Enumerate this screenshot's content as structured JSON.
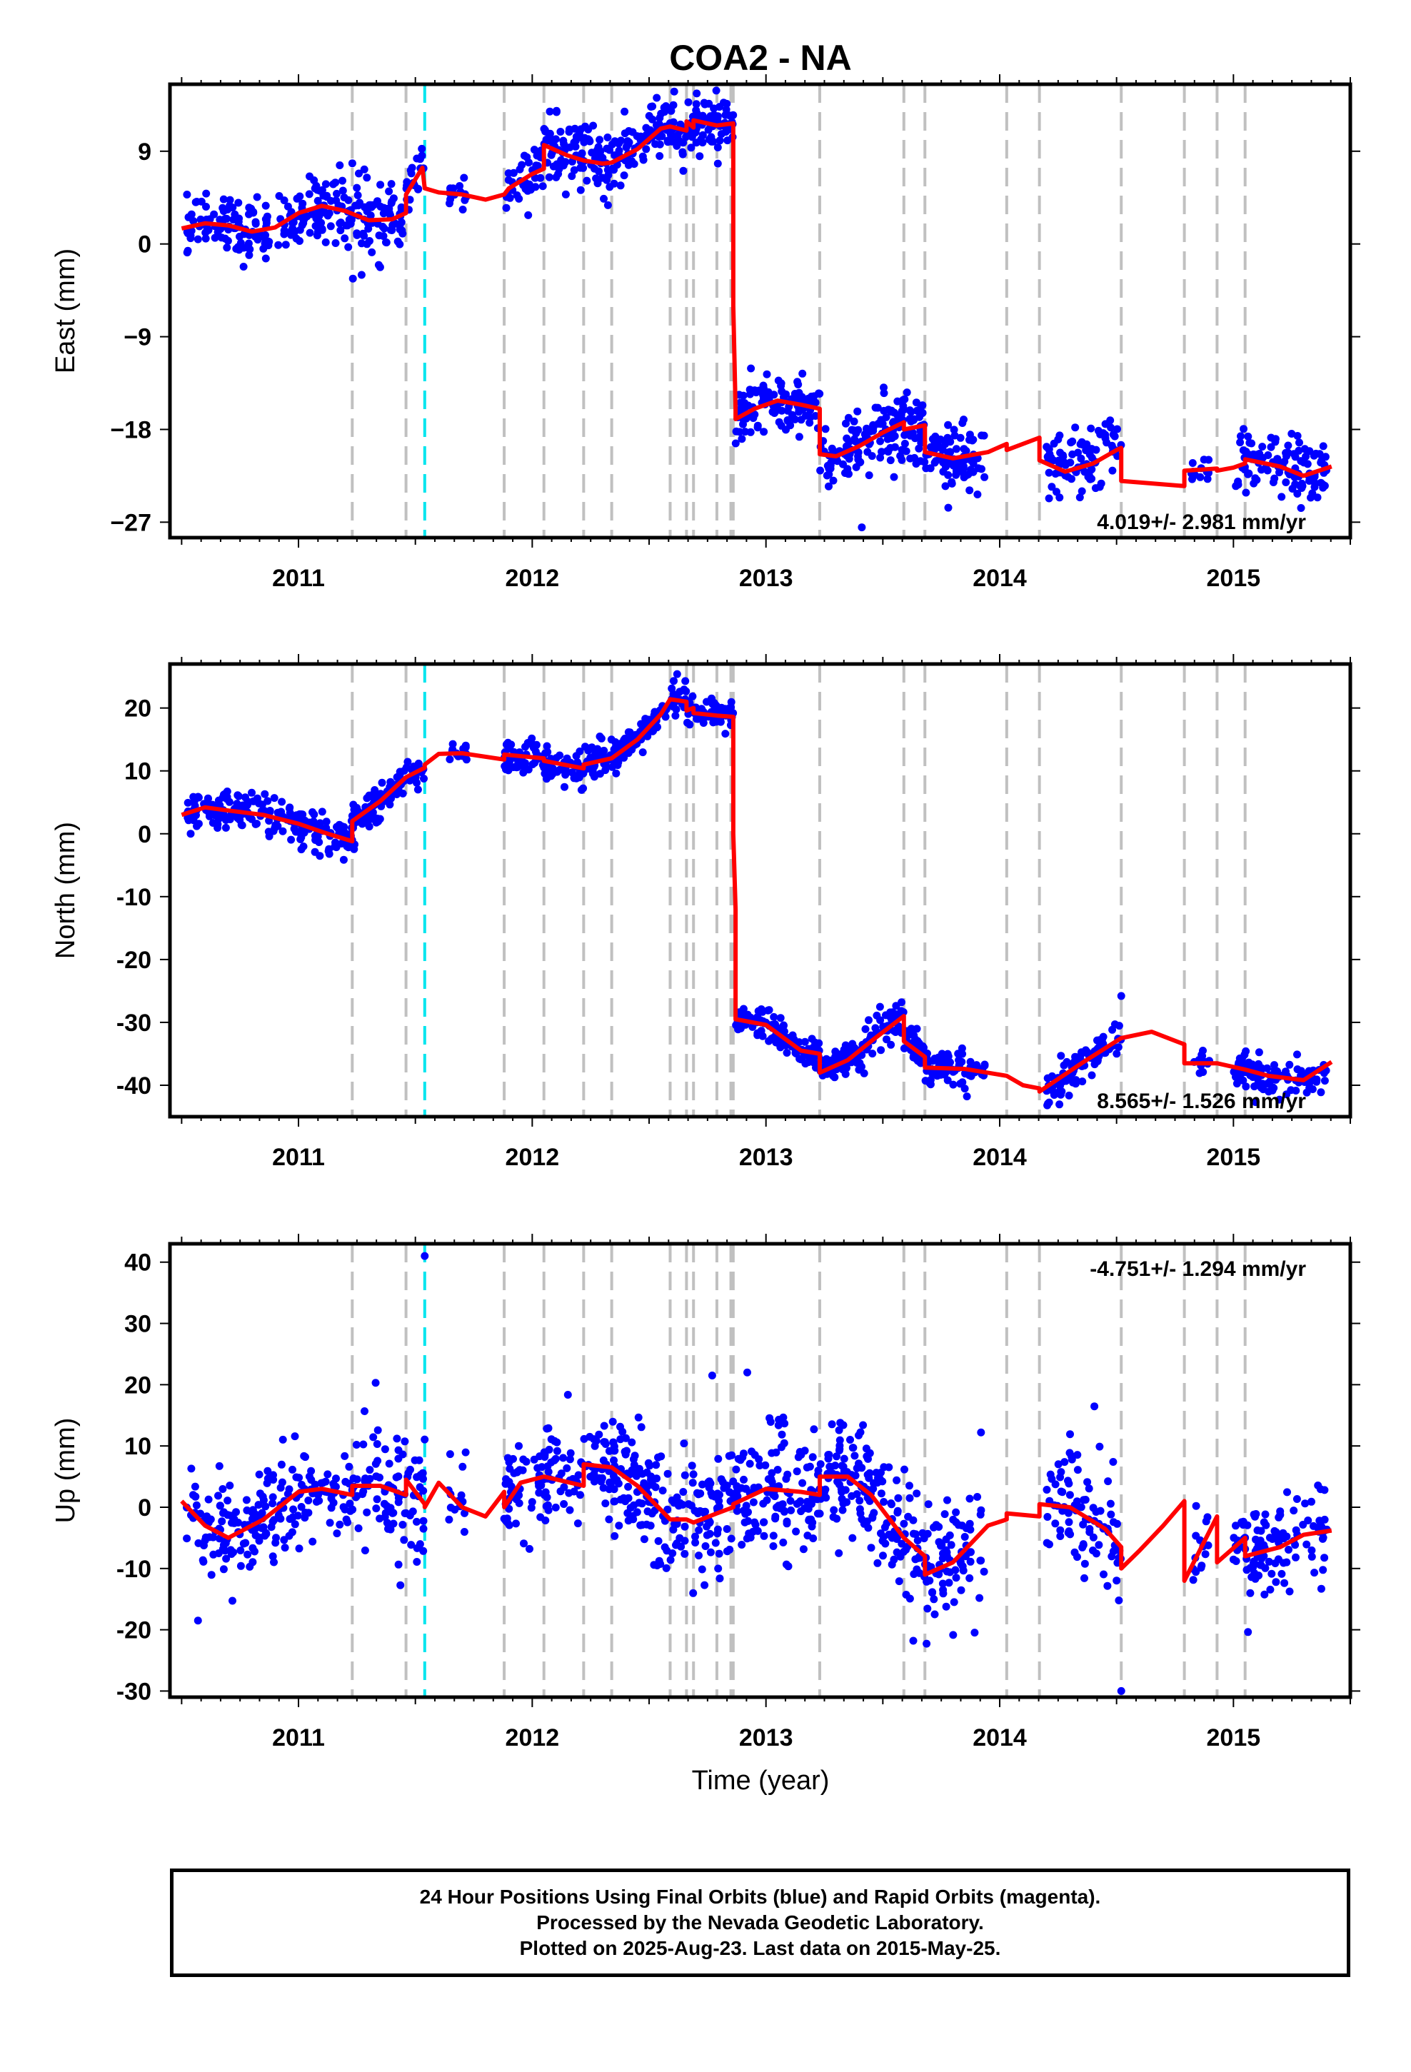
{
  "title": "COA2 - NA",
  "xlabel": "Time (year)",
  "caption": [
    "24 Hour Positions Using Final Orbits (blue) and Rapid Orbits (magenta).",
    "Processed by the Nevada Geodetic Laboratory.",
    "Plotted on 2025-Aug-23. Last data on 2015-May-25."
  ],
  "colors": {
    "data": "#0000ff",
    "model": "#ff0000",
    "event_line": "#c0c0c0",
    "highlight_event_line": "#00e5ee"
  },
  "chart_data": [
    {
      "type": "scatter",
      "panel": "east",
      "ylabel": "East (mm)",
      "xlim": [
        2010.45,
        2015.5
      ],
      "ylim": [
        -28.5,
        15.5
      ],
      "x_ticks": [
        2011,
        2012,
        2013,
        2014,
        2015
      ],
      "y_ticks": [
        -27,
        -18,
        -9,
        0,
        9
      ],
      "rate_label": "4.019+/- 2.981 mm/yr",
      "rate_position": "bottom-right",
      "event_lines": [
        2011.23,
        2011.46,
        2011.88,
        2012.05,
        2012.22,
        2012.34,
        2012.59,
        2012.66,
        2012.69,
        2012.79,
        2012.85,
        2012.86,
        2013.23,
        2013.59,
        2013.68,
        2014.03,
        2014.17,
        2014.52,
        2014.79,
        2014.93,
        2015.05
      ],
      "highlight_event_lines": [
        2011.54
      ],
      "model": [
        [
          2010.5,
          1.5
        ],
        [
          2010.6,
          2.0
        ],
        [
          2010.7,
          1.8
        ],
        [
          2010.8,
          1.2
        ],
        [
          2010.9,
          1.6
        ],
        [
          2011.0,
          3.0
        ],
        [
          2011.1,
          3.7
        ],
        [
          2011.2,
          3.2
        ],
        [
          2011.3,
          2.3
        ],
        [
          2011.4,
          2.4
        ],
        [
          2011.46,
          3.0
        ],
        [
          2011.46,
          4.8
        ],
        [
          2011.53,
          7.4
        ],
        [
          2011.54,
          5.4
        ],
        [
          2011.6,
          5.0
        ],
        [
          2011.7,
          4.8
        ],
        [
          2011.8,
          4.3
        ],
        [
          2011.88,
          4.8
        ],
        [
          2011.9,
          5.4
        ],
        [
          2012.0,
          6.8
        ],
        [
          2012.05,
          7.3
        ],
        [
          2012.05,
          9.6
        ],
        [
          2012.15,
          8.6
        ],
        [
          2012.22,
          8.1
        ],
        [
          2012.3,
          7.8
        ],
        [
          2012.34,
          7.9
        ],
        [
          2012.45,
          9.2
        ],
        [
          2012.55,
          11.2
        ],
        [
          2012.59,
          11.4
        ],
        [
          2012.66,
          11.0
        ],
        [
          2012.66,
          11.9
        ],
        [
          2012.69,
          11.3
        ],
        [
          2012.69,
          12.0
        ],
        [
          2012.79,
          11.5
        ],
        [
          2012.86,
          11.7
        ],
        [
          2012.86,
          -6.0
        ],
        [
          2012.87,
          -16.0
        ],
        [
          2012.87,
          -17.0
        ],
        [
          2012.95,
          -16.0
        ],
        [
          2013.05,
          -15.2
        ],
        [
          2013.15,
          -15.6
        ],
        [
          2013.23,
          -16.0
        ],
        [
          2013.23,
          -20.4
        ],
        [
          2013.3,
          -20.6
        ],
        [
          2013.4,
          -19.6
        ],
        [
          2013.5,
          -18.3
        ],
        [
          2013.59,
          -17.3
        ],
        [
          2013.59,
          -18.0
        ],
        [
          2013.68,
          -17.6
        ],
        [
          2013.68,
          -20.2
        ],
        [
          2013.8,
          -20.8
        ],
        [
          2013.95,
          -20.2
        ],
        [
          2014.03,
          -19.4
        ],
        [
          2014.03,
          -20.0
        ],
        [
          2014.17,
          -18.8
        ],
        [
          2014.17,
          -21.0
        ],
        [
          2014.28,
          -22.1
        ],
        [
          2014.4,
          -21.3
        ],
        [
          2014.5,
          -20.0
        ],
        [
          2014.52,
          -19.8
        ],
        [
          2014.52,
          -23.0
        ],
        [
          2014.79,
          -23.5
        ],
        [
          2014.79,
          -22.0
        ],
        [
          2014.93,
          -21.8
        ],
        [
          2014.93,
          -22.0
        ],
        [
          2015.0,
          -21.7
        ],
        [
          2015.05,
          -21.3
        ],
        [
          2015.05,
          -20.9
        ],
        [
          2015.2,
          -21.6
        ],
        [
          2015.3,
          -22.5
        ],
        [
          2015.42,
          -21.6
        ]
      ],
      "data_segments": [
        {
          "x0": 2010.52,
          "x1": 2011.23,
          "n": 200,
          "spread": 1.5,
          "offset": 0
        },
        {
          "x0": 2011.23,
          "x1": 2011.46,
          "n": 70,
          "spread": 1.8,
          "offset": 0
        },
        {
          "x0": 2011.46,
          "x1": 2011.54,
          "n": 20,
          "spread": 1.5,
          "offset": 0
        },
        {
          "x0": 2011.64,
          "x1": 2011.72,
          "n": 14,
          "spread": 0.6,
          "offset": 0
        },
        {
          "x0": 2011.88,
          "x1": 2012.05,
          "n": 40,
          "spread": 1.3,
          "offset": 0
        },
        {
          "x0": 2012.05,
          "x1": 2012.34,
          "n": 100,
          "spread": 1.6,
          "offset": 0
        },
        {
          "x0": 2012.34,
          "x1": 2012.86,
          "n": 190,
          "spread": 1.4,
          "offset": 0
        },
        {
          "x0": 2012.87,
          "x1": 2013.23,
          "n": 120,
          "spread": 1.3,
          "offset": 0
        },
        {
          "x0": 2013.23,
          "x1": 2013.68,
          "n": 170,
          "spread": 1.7,
          "offset": 0
        },
        {
          "x0": 2013.68,
          "x1": 2013.94,
          "n": 80,
          "spread": 1.5,
          "offset": 0
        },
        {
          "x0": 2014.2,
          "x1": 2014.52,
          "n": 90,
          "spread": 1.8,
          "offset": 0
        },
        {
          "x0": 2014.82,
          "x1": 2014.9,
          "n": 14,
          "spread": 0.8,
          "offset": 0
        },
        {
          "x0": 2015.0,
          "x1": 2015.4,
          "n": 110,
          "spread": 1.6,
          "offset": 0
        }
      ],
      "outliers": [
        [
          2013.41,
          -27.5
        ],
        [
          2011.27,
          -3.0
        ],
        [
          2013.78,
          -25.6
        ]
      ]
    },
    {
      "type": "scatter",
      "panel": "north",
      "ylabel": "North (mm)",
      "xlim": [
        2010.45,
        2015.5
      ],
      "ylim": [
        -45,
        27
      ],
      "x_ticks": [
        2011,
        2012,
        2013,
        2014,
        2015
      ],
      "y_ticks": [
        -40,
        -30,
        -20,
        -10,
        0,
        10,
        20
      ],
      "rate_label": "8.565+/- 1.526 mm/yr",
      "rate_position": "bottom-right",
      "event_lines": [
        2011.23,
        2011.46,
        2011.88,
        2012.05,
        2012.22,
        2012.34,
        2012.59,
        2012.66,
        2012.69,
        2012.79,
        2012.85,
        2012.86,
        2013.23,
        2013.59,
        2013.68,
        2014.03,
        2014.17,
        2014.52,
        2014.79,
        2014.93,
        2015.05
      ],
      "highlight_event_lines": [
        2011.54
      ],
      "model": [
        [
          2010.5,
          3.0
        ],
        [
          2010.6,
          4.2
        ],
        [
          2010.7,
          3.7
        ],
        [
          2010.85,
          3.0
        ],
        [
          2011.0,
          1.6
        ],
        [
          2011.1,
          0.3
        ],
        [
          2011.23,
          -1.2
        ],
        [
          2011.23,
          2.0
        ],
        [
          2011.35,
          5.2
        ],
        [
          2011.46,
          9.0
        ],
        [
          2011.54,
          10.5
        ],
        [
          2011.54,
          11.0
        ],
        [
          2011.6,
          12.7
        ],
        [
          2011.7,
          12.8
        ],
        [
          2011.88,
          11.8
        ],
        [
          2011.88,
          12.6
        ],
        [
          2012.05,
          12.0
        ],
        [
          2012.05,
          11.6
        ],
        [
          2012.22,
          10.4
        ],
        [
          2012.22,
          11.0
        ],
        [
          2012.34,
          12.0
        ],
        [
          2012.45,
          15.0
        ],
        [
          2012.55,
          19.0
        ],
        [
          2012.59,
          21.4
        ],
        [
          2012.66,
          21.0
        ],
        [
          2012.66,
          19.6
        ],
        [
          2012.69,
          20.0
        ],
        [
          2012.69,
          19.2
        ],
        [
          2012.79,
          18.8
        ],
        [
          2012.86,
          18.6
        ],
        [
          2012.86,
          0
        ],
        [
          2012.87,
          -12
        ],
        [
          2012.87,
          -29.5
        ],
        [
          2013.0,
          -30.4
        ],
        [
          2013.15,
          -34.5
        ],
        [
          2013.23,
          -35.0
        ],
        [
          2013.23,
          -38.0
        ],
        [
          2013.35,
          -36.0
        ],
        [
          2013.45,
          -33.0
        ],
        [
          2013.59,
          -29.0
        ],
        [
          2013.59,
          -33.0
        ],
        [
          2013.68,
          -35.5
        ],
        [
          2013.68,
          -37.2
        ],
        [
          2013.85,
          -37.4
        ],
        [
          2014.03,
          -38.5
        ],
        [
          2014.1,
          -40.0
        ],
        [
          2014.17,
          -40.5
        ],
        [
          2014.17,
          -41.0
        ],
        [
          2014.25,
          -39.0
        ],
        [
          2014.35,
          -36.5
        ],
        [
          2014.52,
          -32.5
        ],
        [
          2014.65,
          -31.5
        ],
        [
          2014.79,
          -33.5
        ],
        [
          2014.79,
          -36.5
        ],
        [
          2014.93,
          -36.5
        ],
        [
          2015.05,
          -37.5
        ],
        [
          2015.15,
          -38.5
        ],
        [
          2015.3,
          -39.2
        ],
        [
          2015.42,
          -36.3
        ]
      ],
      "data_segments": [
        {
          "x0": 2010.52,
          "x1": 2011.23,
          "n": 200,
          "spread": 1.5,
          "offset": 0
        },
        {
          "x0": 2011.23,
          "x1": 2011.46,
          "n": 80,
          "spread": 1.4,
          "offset": 0
        },
        {
          "x0": 2011.46,
          "x1": 2011.54,
          "n": 20,
          "spread": 1.0,
          "offset": 0
        },
        {
          "x0": 2011.64,
          "x1": 2011.72,
          "n": 14,
          "spread": 0.8,
          "offset": 0
        },
        {
          "x0": 2011.88,
          "x1": 2012.34,
          "n": 130,
          "spread": 1.5,
          "offset": 0
        },
        {
          "x0": 2012.34,
          "x1": 2012.86,
          "n": 190,
          "spread": 1.2,
          "offset": 0
        },
        {
          "x0": 2012.87,
          "x1": 2013.23,
          "n": 130,
          "spread": 1.3,
          "offset": 0
        },
        {
          "x0": 2013.23,
          "x1": 2013.68,
          "n": 160,
          "spread": 1.4,
          "offset": 0
        },
        {
          "x0": 2013.68,
          "x1": 2013.94,
          "n": 80,
          "spread": 1.3,
          "offset": 0
        },
        {
          "x0": 2014.2,
          "x1": 2014.52,
          "n": 90,
          "spread": 1.6,
          "offset": 0
        },
        {
          "x0": 2014.82,
          "x1": 2014.9,
          "n": 14,
          "spread": 0.8,
          "offset": 0
        },
        {
          "x0": 2015.0,
          "x1": 2015.4,
          "n": 110,
          "spread": 1.4,
          "offset": 0
        }
      ],
      "outliers": [
        [
          2012.62,
          25.4
        ],
        [
          2014.52,
          -25.8
        ],
        [
          2013.58,
          -26.8
        ]
      ]
    },
    {
      "type": "scatter",
      "panel": "up",
      "ylabel": "Up (mm)",
      "xlim": [
        2010.45,
        2015.5
      ],
      "ylim": [
        -31,
        43
      ],
      "x_ticks": [
        2011,
        2012,
        2013,
        2014,
        2015
      ],
      "y_ticks": [
        -30,
        -20,
        -10,
        0,
        10,
        20,
        30,
        40
      ],
      "rate_label": "-4.751+/- 1.294 mm/yr",
      "rate_position": "top-right",
      "event_lines": [
        2011.23,
        2011.46,
        2011.88,
        2012.05,
        2012.22,
        2012.34,
        2012.59,
        2012.66,
        2012.69,
        2012.79,
        2012.85,
        2012.86,
        2013.23,
        2013.59,
        2013.68,
        2014.03,
        2014.17,
        2014.52,
        2014.79,
        2014.93,
        2015.05
      ],
      "highlight_event_lines": [
        2011.54
      ],
      "model": [
        [
          2010.5,
          1.0
        ],
        [
          2010.6,
          -3.0
        ],
        [
          2010.7,
          -5.0
        ],
        [
          2010.85,
          -2.0
        ],
        [
          2011.0,
          2.5
        ],
        [
          2011.1,
          3.0
        ],
        [
          2011.23,
          2.0
        ],
        [
          2011.23,
          3.5
        ],
        [
          2011.35,
          3.5
        ],
        [
          2011.46,
          2.0
        ],
        [
          2011.46,
          4.5
        ],
        [
          2011.54,
          0.5
        ],
        [
          2011.54,
          0
        ],
        [
          2011.6,
          4.0
        ],
        [
          2011.7,
          0
        ],
        [
          2011.8,
          -1.5
        ],
        [
          2011.88,
          2.5
        ],
        [
          2011.88,
          0
        ],
        [
          2011.95,
          4.0
        ],
        [
          2012.05,
          5.0
        ],
        [
          2012.22,
          3.5
        ],
        [
          2012.22,
          7.0
        ],
        [
          2012.34,
          6.5
        ],
        [
          2012.45,
          3.5
        ],
        [
          2012.59,
          -2.0
        ],
        [
          2012.66,
          -2.0
        ],
        [
          2012.69,
          -2.5
        ],
        [
          2012.79,
          -1.0
        ],
        [
          2012.86,
          0
        ],
        [
          2012.86,
          0.5
        ],
        [
          2013.0,
          3.0
        ],
        [
          2013.15,
          2.5
        ],
        [
          2013.23,
          2.0
        ],
        [
          2013.23,
          5.0
        ],
        [
          2013.35,
          5.0
        ],
        [
          2013.45,
          2.0
        ],
        [
          2013.59,
          -5.0
        ],
        [
          2013.68,
          -8.0
        ],
        [
          2013.68,
          -11.0
        ],
        [
          2013.8,
          -9.0
        ],
        [
          2013.95,
          -3.0
        ],
        [
          2014.03,
          -2.0
        ],
        [
          2014.03,
          -1.0
        ],
        [
          2014.17,
          -1.5
        ],
        [
          2014.17,
          0.5
        ],
        [
          2014.3,
          0
        ],
        [
          2014.45,
          -3.5
        ],
        [
          2014.52,
          -6.5
        ],
        [
          2014.52,
          -10.0
        ],
        [
          2014.6,
          -7.0
        ],
        [
          2014.7,
          -3.0
        ],
        [
          2014.79,
          1.0
        ],
        [
          2014.79,
          -12.0
        ],
        [
          2014.93,
          -1.5
        ],
        [
          2014.93,
          -9.0
        ],
        [
          2015.05,
          -5.0
        ],
        [
          2015.05,
          -8.0
        ],
        [
          2015.2,
          -6.5
        ],
        [
          2015.3,
          -4.5
        ],
        [
          2015.42,
          -3.8
        ]
      ],
      "data_segments": [
        {
          "x0": 2010.52,
          "x1": 2011.23,
          "n": 200,
          "spread": 4.0,
          "offset": 0
        },
        {
          "x0": 2011.23,
          "x1": 2011.54,
          "n": 90,
          "spread": 5.0,
          "offset": 0
        },
        {
          "x0": 2011.64,
          "x1": 2011.72,
          "n": 14,
          "spread": 3.5,
          "offset": 0
        },
        {
          "x0": 2011.88,
          "x1": 2012.34,
          "n": 130,
          "spread": 4.0,
          "offset": 0
        },
        {
          "x0": 2012.34,
          "x1": 2012.86,
          "n": 190,
          "spread": 5.0,
          "offset": 0
        },
        {
          "x0": 2012.87,
          "x1": 2013.23,
          "n": 130,
          "spread": 5.0,
          "offset": 0
        },
        {
          "x0": 2013.23,
          "x1": 2013.68,
          "n": 160,
          "spread": 5.0,
          "offset": 0
        },
        {
          "x0": 2013.68,
          "x1": 2013.94,
          "n": 80,
          "spread": 5.0,
          "offset": 0
        },
        {
          "x0": 2014.2,
          "x1": 2014.52,
          "n": 90,
          "spread": 5.0,
          "offset": 0
        },
        {
          "x0": 2014.82,
          "x1": 2014.9,
          "n": 14,
          "spread": 3.5,
          "offset": 0
        },
        {
          "x0": 2015.0,
          "x1": 2015.4,
          "n": 110,
          "spread": 4.0,
          "offset": 0
        }
      ],
      "outliers": [
        [
          2011.54,
          41
        ],
        [
          2014.52,
          -30
        ],
        [
          2012.77,
          21.5
        ],
        [
          2012.92,
          22
        ],
        [
          2011.33,
          20.3
        ],
        [
          2010.57,
          -18.5
        ],
        [
          2013.92,
          12.2
        ]
      ]
    }
  ]
}
